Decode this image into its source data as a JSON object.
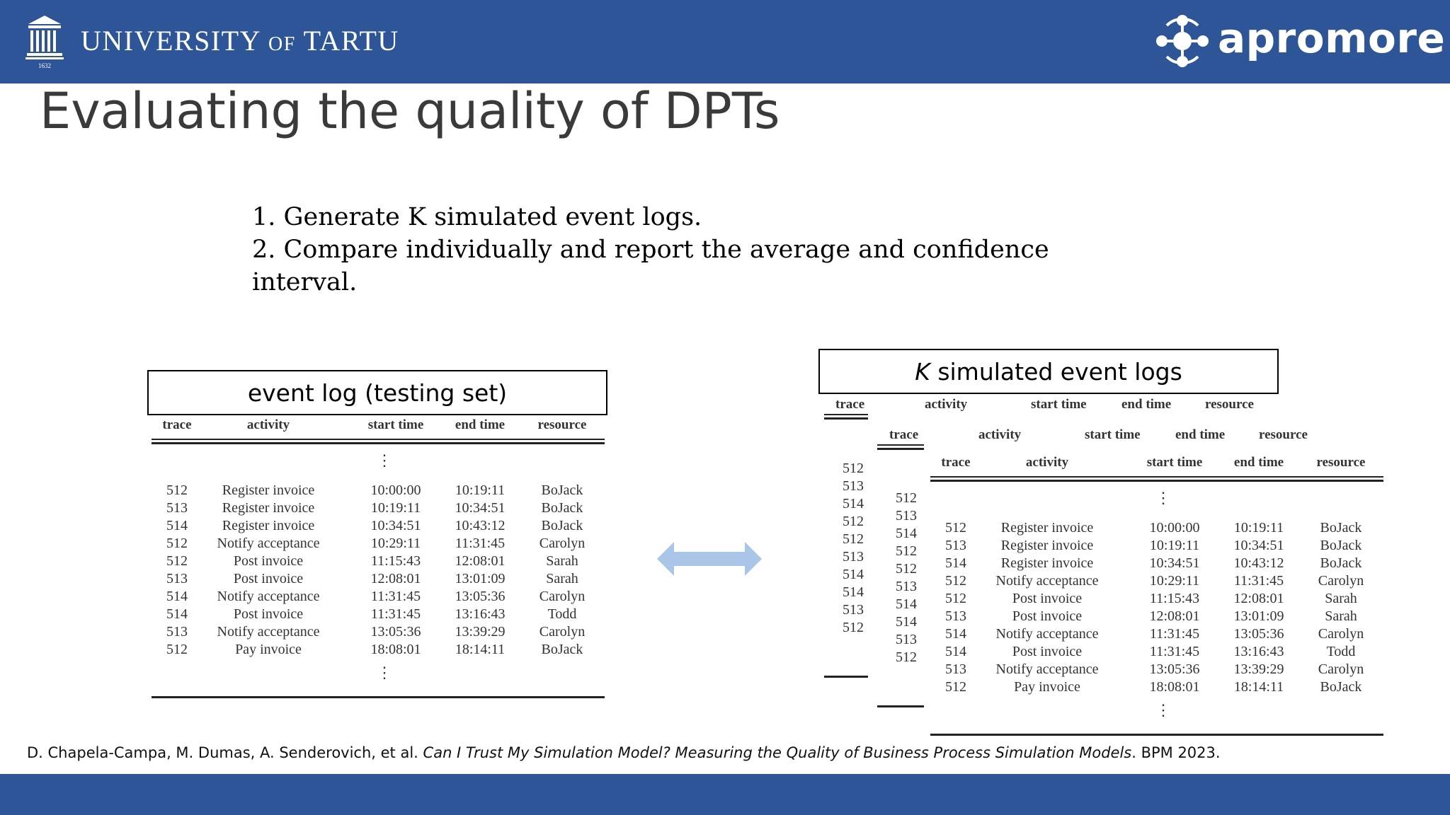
{
  "colors": {
    "brand": "#2e5597",
    "arrow": "#a9c6e8"
  },
  "header": {
    "university_name_part1": "UNIVERSITY",
    "university_name_of": "OF",
    "university_name_part2": "TARTU",
    "university_seal_year": "1632",
    "brand_name": "apromore",
    "icons": [
      "university-building-icon",
      "apromore-logo-icon"
    ]
  },
  "title": "Evaluating the quality of DPTs",
  "steps": [
    "1. Generate K simulated event logs.",
    "2. Compare individually and report the average and confidence",
    "interval."
  ],
  "left_panel": {
    "label": "event log (testing set)",
    "columns": [
      "trace",
      "activity",
      "start time",
      "end time",
      "resource"
    ],
    "rows": [
      [
        "512",
        "Register invoice",
        "10:00:00",
        "10:19:11",
        "BoJack"
      ],
      [
        "513",
        "Register invoice",
        "10:19:11",
        "10:34:51",
        "BoJack"
      ],
      [
        "514",
        "Register invoice",
        "10:34:51",
        "10:43:12",
        "BoJack"
      ],
      [
        "512",
        "Notify acceptance",
        "10:29:11",
        "11:31:45",
        "Carolyn"
      ],
      [
        "512",
        "Post invoice",
        "11:15:43",
        "12:08:01",
        "Sarah"
      ],
      [
        "513",
        "Post invoice",
        "12:08:01",
        "13:01:09",
        "Sarah"
      ],
      [
        "514",
        "Notify acceptance",
        "11:31:45",
        "13:05:36",
        "Carolyn"
      ],
      [
        "514",
        "Post invoice",
        "11:31:45",
        "13:16:43",
        "Todd"
      ],
      [
        "513",
        "Notify acceptance",
        "13:05:36",
        "13:39:29",
        "Carolyn"
      ],
      [
        "512",
        "Pay invoice",
        "18:08:01",
        "18:14:11",
        "BoJack"
      ]
    ]
  },
  "right_panel": {
    "label_var": "K",
    "label_rest": " simulated event logs",
    "back_layer_1": {
      "columns": [
        "trace",
        "activity",
        "start time",
        "end time",
        "resource"
      ],
      "traces": [
        "512",
        "513",
        "514",
        "512",
        "512",
        "513",
        "514",
        "514",
        "513",
        "512"
      ]
    },
    "back_layer_2": {
      "columns": [
        "trace",
        "activity",
        "start time",
        "end time",
        "resource"
      ],
      "traces": [
        "512",
        "513",
        "514",
        "512",
        "512",
        "513",
        "514",
        "514",
        "513",
        "512"
      ]
    },
    "front_layer": {
      "columns": [
        "trace",
        "activity",
        "start time",
        "end time",
        "resource"
      ],
      "rows": [
        [
          "512",
          "Register invoice",
          "10:00:00",
          "10:19:11",
          "BoJack"
        ],
        [
          "513",
          "Register invoice",
          "10:19:11",
          "10:34:51",
          "BoJack"
        ],
        [
          "514",
          "Register invoice",
          "10:34:51",
          "10:43:12",
          "BoJack"
        ],
        [
          "512",
          "Notify acceptance",
          "10:29:11",
          "11:31:45",
          "Carolyn"
        ],
        [
          "512",
          "Post invoice",
          "11:15:43",
          "12:08:01",
          "Sarah"
        ],
        [
          "513",
          "Post invoice",
          "12:08:01",
          "13:01:09",
          "Sarah"
        ],
        [
          "514",
          "Notify acceptance",
          "11:31:45",
          "13:05:36",
          "Carolyn"
        ],
        [
          "514",
          "Post invoice",
          "11:31:45",
          "13:16:43",
          "Todd"
        ],
        [
          "513",
          "Notify acceptance",
          "13:05:36",
          "13:39:29",
          "Carolyn"
        ],
        [
          "512",
          "Pay invoice",
          "18:08:01",
          "18:14:11",
          "BoJack"
        ]
      ]
    }
  },
  "citation": {
    "authors": "D. Chapela-Campa, M. Dumas, A. Senderovich, et al. ",
    "title": "Can I Trust My Simulation Model? Measuring the Quality of Business Process Simulation Models",
    "venue": ". BPM 2023."
  }
}
